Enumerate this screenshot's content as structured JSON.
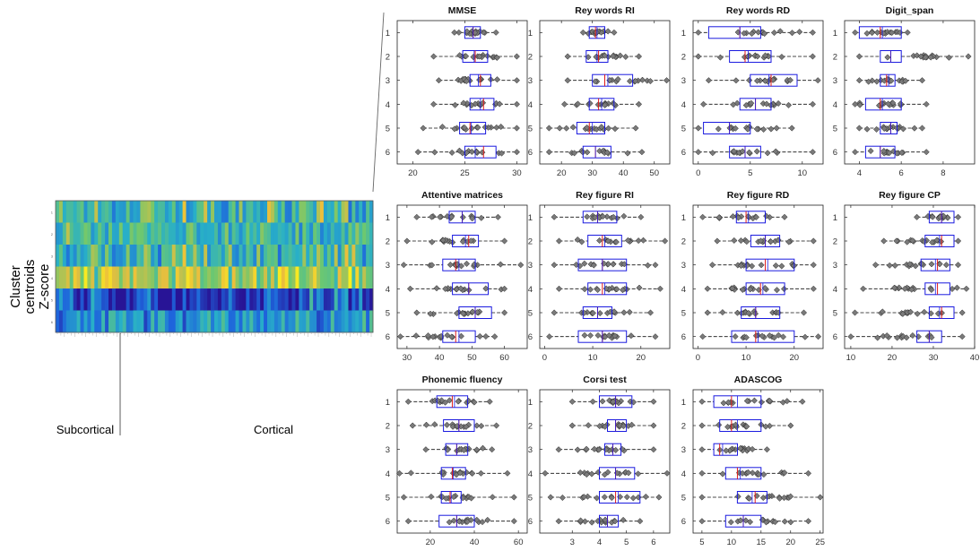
{
  "left_panel": {
    "ylabel_lines": [
      "Cluster",
      "centroids",
      "Z-score"
    ],
    "row_labels": [
      "1",
      "2",
      "3",
      "4",
      "5",
      "6"
    ],
    "region_labels": [
      "Subcortical",
      "Cortical"
    ],
    "colors": {
      "low": "#1f2d9b",
      "mid": "#2bb4a8",
      "high": "#f5e52a"
    }
  },
  "chart_data": [
    {
      "type": "boxplot",
      "title": "MMSE",
      "xlim": [
        18.5,
        31
      ],
      "xticks": [
        20,
        25,
        30
      ],
      "categories": [
        "1",
        "2",
        "3",
        "4",
        "5",
        "6"
      ],
      "boxes": [
        {
          "cluster": "1",
          "q1": 25,
          "median": 25.8,
          "q3": 26.5,
          "mean": 25.8,
          "whisker_lo": 24,
          "whisker_hi": 28
        },
        {
          "cluster": "2",
          "q1": 24.8,
          "median": 26,
          "q3": 27.2,
          "mean": 25.9,
          "whisker_lo": 22,
          "whisker_hi": 30
        },
        {
          "cluster": "3",
          "q1": 25.5,
          "median": 26.5,
          "q3": 27.5,
          "mean": 26.3,
          "whisker_lo": 22.5,
          "whisker_hi": 30
        },
        {
          "cluster": "4",
          "q1": 25.5,
          "median": 26.8,
          "q3": 27.8,
          "mean": 26.5,
          "whisker_lo": 22,
          "whisker_hi": 30
        },
        {
          "cluster": "5",
          "q1": 24.5,
          "median": 25.5,
          "q3": 27,
          "mean": 25.6,
          "whisker_lo": 21,
          "whisker_hi": 30
        },
        {
          "cluster": "6",
          "q1": 25,
          "median": 26.8,
          "q3": 28,
          "mean": 26,
          "whisker_lo": 20.5,
          "whisker_hi": 30
        }
      ]
    },
    {
      "type": "boxplot",
      "title": "Rey words RI",
      "xlim": [
        13,
        55
      ],
      "xticks": [
        20,
        30,
        40,
        50
      ],
      "categories": [
        "1",
        "2",
        "3",
        "4",
        "5",
        "6"
      ],
      "boxes": [
        {
          "cluster": "1",
          "q1": 29,
          "median": 31,
          "q3": 34,
          "mean": 31.5,
          "whisker_lo": 27,
          "whisker_hi": 37
        },
        {
          "cluster": "2",
          "q1": 28,
          "median": 32,
          "q3": 35,
          "mean": 31.5,
          "whisker_lo": 22,
          "whisker_hi": 45
        },
        {
          "cluster": "3",
          "q1": 30,
          "median": 34,
          "q3": 43,
          "mean": 35,
          "whisker_lo": 22,
          "whisker_hi": 54
        },
        {
          "cluster": "4",
          "q1": 29,
          "median": 32,
          "q3": 37,
          "mean": 33,
          "whisker_lo": 21,
          "whisker_hi": 45
        },
        {
          "cluster": "5",
          "q1": 25,
          "median": 29,
          "q3": 34,
          "mean": 30,
          "whisker_lo": 16,
          "whisker_hi": 44
        },
        {
          "cluster": "6",
          "q1": 27,
          "median": 31,
          "q3": 36,
          "mean": 31,
          "whisker_lo": 16,
          "whisker_hi": 46
        }
      ]
    },
    {
      "type": "boxplot",
      "title": "Rey words  RD",
      "xlim": [
        -0.5,
        12
      ],
      "xticks": [
        0,
        5,
        10
      ],
      "categories": [
        "1",
        "2",
        "3",
        "4",
        "5",
        "6"
      ],
      "boxes": [
        {
          "cluster": "1",
          "q1": 1,
          "median": 4,
          "q3": 6,
          "mean": 4,
          "whisker_lo": 0,
          "whisker_hi": 11
        },
        {
          "cluster": "2",
          "q1": 3,
          "median": 4.5,
          "q3": 7,
          "mean": 4.8,
          "whisker_lo": 0,
          "whisker_hi": 11
        },
        {
          "cluster": "3",
          "q1": 5,
          "median": 7,
          "q3": 9.5,
          "mean": 6.8,
          "whisker_lo": 1,
          "whisker_hi": 11.5
        },
        {
          "cluster": "4",
          "q1": 4,
          "median": 5.5,
          "q3": 7,
          "mean": 5.5,
          "whisker_lo": 0.5,
          "whisker_hi": 11
        },
        {
          "cluster": "5",
          "q1": 0.5,
          "median": 3,
          "q3": 5,
          "mean": 3,
          "whisker_lo": 0,
          "whisker_hi": 9
        },
        {
          "cluster": "6",
          "q1": 3,
          "median": 4.5,
          "q3": 6,
          "mean": 4.5,
          "whisker_lo": 0,
          "whisker_hi": 11
        }
      ]
    },
    {
      "type": "boxplot",
      "title": "Digit_span",
      "xlim": [
        3.3,
        9.5
      ],
      "xticks": [
        4,
        6,
        8
      ],
      "categories": [
        "1",
        "2",
        "3",
        "4",
        "5",
        "6"
      ],
      "boxes": [
        {
          "cluster": "1",
          "q1": 4,
          "median": 5,
          "q3": 6,
          "mean": 5.1,
          "whisker_lo": 3.8,
          "whisker_hi": 6.3
        },
        {
          "cluster": "2",
          "q1": 5,
          "median": 5.5,
          "q3": 6,
          "mean": 5.5,
          "whisker_lo": 4,
          "whisker_hi": 9.2
        },
        {
          "cluster": "3",
          "q1": 5,
          "median": 5.3,
          "q3": 5.7,
          "mean": 5.4,
          "whisker_lo": 4,
          "whisker_hi": 7
        },
        {
          "cluster": "4",
          "q1": 4.3,
          "median": 5,
          "q3": 6,
          "mean": 5.1,
          "whisker_lo": 3.8,
          "whisker_hi": 7.2
        },
        {
          "cluster": "5",
          "q1": 5,
          "median": 5.5,
          "q3": 5.8,
          "mean": 5.5,
          "whisker_lo": 4,
          "whisker_hi": 7
        },
        {
          "cluster": "6",
          "q1": 4.3,
          "median": 5,
          "q3": 5.7,
          "mean": 5,
          "whisker_lo": 3.8,
          "whisker_hi": 7.2
        }
      ]
    },
    {
      "type": "boxplot",
      "title": "Attentive matrices",
      "xlim": [
        27,
        67
      ],
      "xticks": [
        30,
        40,
        50,
        60
      ],
      "categories": [
        "1",
        "2",
        "3",
        "4",
        "5",
        "6"
      ],
      "boxes": [
        {
          "cluster": "1",
          "q1": 43,
          "median": 47,
          "q3": 51,
          "mean": 47,
          "whisker_lo": 33,
          "whisker_hi": 58
        },
        {
          "cluster": "2",
          "q1": 44,
          "median": 49,
          "q3": 52,
          "mean": 48,
          "whisker_lo": 30,
          "whisker_hi": 60
        },
        {
          "cluster": "3",
          "q1": 41,
          "median": 45,
          "q3": 51,
          "mean": 46,
          "whisker_lo": 29,
          "whisker_hi": 65
        },
        {
          "cluster": "4",
          "q1": 44,
          "median": 49,
          "q3": 55,
          "mean": 49,
          "whisker_lo": 31,
          "whisker_hi": 60
        },
        {
          "cluster": "5",
          "q1": 46,
          "median": 51,
          "q3": 56,
          "mean": 51,
          "whisker_lo": 33,
          "whisker_hi": 60
        },
        {
          "cluster": "6",
          "q1": 41,
          "median": 45,
          "q3": 51,
          "mean": 46,
          "whisker_lo": 28,
          "whisker_hi": 57
        }
      ]
    },
    {
      "type": "boxplot",
      "title": "Rey figure RI",
      "xlim": [
        -1,
        26
      ],
      "xticks": [
        0,
        10,
        20
      ],
      "categories": [
        "1",
        "2",
        "3",
        "4",
        "5",
        "6"
      ],
      "boxes": [
        {
          "cluster": "1",
          "q1": 8,
          "median": 11,
          "q3": 15,
          "mean": 11,
          "whisker_lo": 2,
          "whisker_hi": 20
        },
        {
          "cluster": "2",
          "q1": 9,
          "median": 12,
          "q3": 16,
          "mean": 12.5,
          "whisker_lo": 3,
          "whisker_hi": 25
        },
        {
          "cluster": "3",
          "q1": 7,
          "median": 12,
          "q3": 17,
          "mean": 12,
          "whisker_lo": 2,
          "whisker_hi": 23
        },
        {
          "cluster": "4",
          "q1": 9,
          "median": 12,
          "q3": 17,
          "mean": 12.5,
          "whisker_lo": 3,
          "whisker_hi": 24
        },
        {
          "cluster": "5",
          "q1": 8,
          "median": 11,
          "q3": 14,
          "mean": 11,
          "whisker_lo": 2,
          "whisker_hi": 22
        },
        {
          "cluster": "6",
          "q1": 7,
          "median": 12,
          "q3": 17,
          "mean": 12,
          "whisker_lo": 1,
          "whisker_hi": 23
        }
      ]
    },
    {
      "type": "boxplot",
      "title": "Rey figure RD",
      "xlim": [
        -1,
        26
      ],
      "xticks": [
        0,
        10,
        20
      ],
      "categories": [
        "1",
        "2",
        "3",
        "4",
        "5",
        "6"
      ],
      "boxes": [
        {
          "cluster": "1",
          "q1": 8,
          "median": 10,
          "q3": 14,
          "mean": 10.5,
          "whisker_lo": 1,
          "whisker_hi": 18
        },
        {
          "cluster": "2",
          "q1": 11,
          "median": 14,
          "q3": 17,
          "mean": 14,
          "whisker_lo": 4,
          "whisker_hi": 24
        },
        {
          "cluster": "3",
          "q1": 10,
          "median": 14,
          "q3": 20,
          "mean": 14.5,
          "whisker_lo": 3,
          "whisker_hi": 24
        },
        {
          "cluster": "4",
          "q1": 10,
          "median": 13,
          "q3": 18,
          "mean": 13.5,
          "whisker_lo": 2,
          "whisker_hi": 24
        },
        {
          "cluster": "5",
          "q1": 9,
          "median": 12,
          "q3": 17,
          "mean": 12,
          "whisker_lo": 2,
          "whisker_hi": 22
        },
        {
          "cluster": "6",
          "q1": 7,
          "median": 12,
          "q3": 20,
          "mean": 12.5,
          "whisker_lo": 1,
          "whisker_hi": 25
        }
      ]
    },
    {
      "type": "boxplot",
      "title": "Rey figure CP",
      "xlim": [
        8.5,
        40
      ],
      "xticks": [
        10,
        20,
        30,
        40
      ],
      "categories": [
        "1",
        "2",
        "3",
        "4",
        "5",
        "6"
      ],
      "boxes": [
        {
          "cluster": "1",
          "q1": 29,
          "median": 32,
          "q3": 35,
          "mean": 32,
          "whisker_lo": 26,
          "whisker_hi": 36
        },
        {
          "cluster": "2",
          "q1": 28,
          "median": 32,
          "q3": 35,
          "mean": 31.5,
          "whisker_lo": 18,
          "whisker_hi": 36
        },
        {
          "cluster": "3",
          "q1": 27,
          "median": 31,
          "q3": 34,
          "mean": 30.5,
          "whisker_lo": 16,
          "whisker_hi": 36
        },
        {
          "cluster": "4",
          "q1": 28,
          "median": 31,
          "q3": 34,
          "mean": 30.5,
          "whisker_lo": 13,
          "whisker_hi": 38
        },
        {
          "cluster": "5",
          "q1": 29,
          "median": 32,
          "q3": 35,
          "mean": 31.5,
          "whisker_lo": 11,
          "whisker_hi": 37
        },
        {
          "cluster": "6",
          "q1": 26,
          "median": 29,
          "q3": 32,
          "mean": 29,
          "whisker_lo": 10,
          "whisker_hi": 37
        }
      ]
    },
    {
      "type": "boxplot",
      "title": "Phonemic fluency",
      "xlim": [
        5,
        64
      ],
      "xticks": [
        20,
        40,
        60
      ],
      "categories": [
        "1",
        "2",
        "3",
        "4",
        "5",
        "6"
      ],
      "boxes": [
        {
          "cluster": "1",
          "q1": 23,
          "median": 30,
          "q3": 37,
          "mean": 31,
          "whisker_lo": 10,
          "whisker_hi": 47
        },
        {
          "cluster": "2",
          "q1": 26,
          "median": 33,
          "q3": 40,
          "mean": 33,
          "whisker_lo": 12,
          "whisker_hi": 50
        },
        {
          "cluster": "3",
          "q1": 27,
          "median": 32,
          "q3": 37,
          "mean": 32,
          "whisker_lo": 18,
          "whisker_hi": 48
        },
        {
          "cluster": "4",
          "q1": 25,
          "median": 30,
          "q3": 36,
          "mean": 30.5,
          "whisker_lo": 6,
          "whisker_hi": 55
        },
        {
          "cluster": "5",
          "q1": 25,
          "median": 29,
          "q3": 34,
          "mean": 29.5,
          "whisker_lo": 8,
          "whisker_hi": 58
        },
        {
          "cluster": "6",
          "q1": 24,
          "median": 32,
          "q3": 40,
          "mean": 32,
          "whisker_lo": 10,
          "whisker_hi": 58
        }
      ]
    },
    {
      "type": "boxplot",
      "title": "Corsi test",
      "xlim": [
        1.8,
        6.6
      ],
      "xticks": [
        3,
        4,
        5,
        6
      ],
      "categories": [
        "1",
        "2",
        "3",
        "4",
        "5",
        "6"
      ],
      "boxes": [
        {
          "cluster": "1",
          "q1": 4,
          "median": 4.6,
          "q3": 5.2,
          "mean": 4.6,
          "whisker_lo": 3,
          "whisker_hi": 6
        },
        {
          "cluster": "2",
          "q1": 4.3,
          "median": 4.6,
          "q3": 5,
          "mean": 4.6,
          "whisker_lo": 3,
          "whisker_hi": 6
        },
        {
          "cluster": "3",
          "q1": 4.2,
          "median": 4.5,
          "q3": 4.8,
          "mean": 4.5,
          "whisker_lo": 2.5,
          "whisker_hi": 6
        },
        {
          "cluster": "4",
          "q1": 4,
          "median": 4.6,
          "q3": 5.3,
          "mean": 4.6,
          "whisker_lo": 2,
          "whisker_hi": 6.5
        },
        {
          "cluster": "5",
          "q1": 4,
          "median": 4.6,
          "q3": 5.5,
          "mean": 4.7,
          "whisker_lo": 2.2,
          "whisker_hi": 6.2
        },
        {
          "cluster": "6",
          "q1": 4,
          "median": 4.3,
          "q3": 4.7,
          "mean": 4.3,
          "whisker_lo": 2.5,
          "whisker_hi": 5.5
        }
      ]
    },
    {
      "type": "boxplot",
      "title": "ADASCOG",
      "xlim": [
        3.5,
        25.5
      ],
      "xticks": [
        5,
        10,
        15,
        20,
        25
      ],
      "categories": [
        "1",
        "2",
        "3",
        "4",
        "5",
        "6"
      ],
      "boxes": [
        {
          "cluster": "1",
          "q1": 7,
          "median": 10,
          "q3": 15,
          "mean": 11,
          "whisker_lo": 5,
          "whisker_hi": 22
        },
        {
          "cluster": "2",
          "q1": 8,
          "median": 10,
          "q3": 15,
          "mean": 11,
          "whisker_lo": 5,
          "whisker_hi": 20
        },
        {
          "cluster": "3",
          "q1": 7,
          "median": 8,
          "q3": 11,
          "mean": 8.5,
          "whisker_lo": 5,
          "whisker_hi": 16
        },
        {
          "cluster": "4",
          "q1": 9,
          "median": 11,
          "q3": 15,
          "mean": 11.5,
          "whisker_lo": 5,
          "whisker_hi": 23
        },
        {
          "cluster": "5",
          "q1": 11,
          "median": 14,
          "q3": 16,
          "mean": 13.5,
          "whisker_lo": 5,
          "whisker_hi": 25
        },
        {
          "cluster": "6",
          "q1": 9,
          "median": 12,
          "q3": 15,
          "mean": 12,
          "whisker_lo": 5,
          "whisker_hi": 23
        }
      ]
    }
  ]
}
